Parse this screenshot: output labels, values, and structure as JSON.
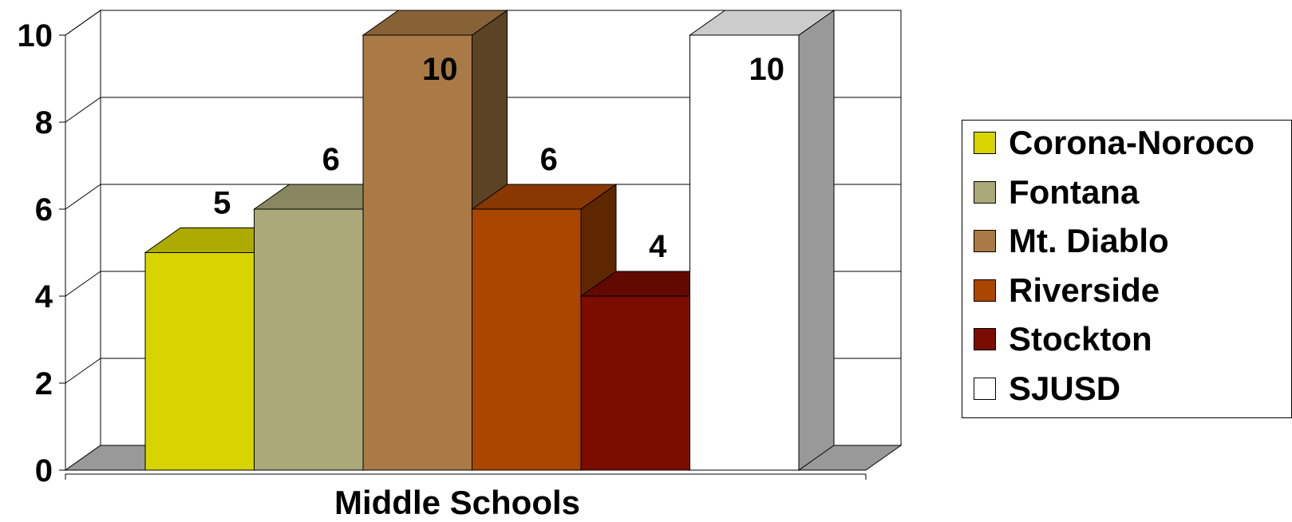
{
  "chart_data": {
    "type": "bar",
    "title": "",
    "xlabel": "Middle Schools",
    "ylabel": "",
    "ylim": [
      0,
      10
    ],
    "yticks": [
      "0",
      "2",
      "4",
      "6",
      "8",
      "10"
    ],
    "grid": true,
    "legend_position": "right",
    "categories": [
      "Middle Schools"
    ],
    "series": [
      {
        "name": "Corona-Noroco",
        "values": [
          5
        ],
        "label": "5",
        "color": "#D8D400"
      },
      {
        "name": "Fontana",
        "values": [
          6
        ],
        "label": "6",
        "color": "#ABA97A"
      },
      {
        "name": "Mt. Diablo",
        "values": [
          10
        ],
        "label": "10",
        "color": "#A97A45"
      },
      {
        "name": "Riverside",
        "values": [
          6
        ],
        "label": "6",
        "color": "#AA4600"
      },
      {
        "name": "Stockton",
        "values": [
          4
        ],
        "label": "4",
        "color": "#7A0D00"
      },
      {
        "name": "SJUSD",
        "values": [
          10
        ],
        "label": "10",
        "color": "#FFFFFF"
      }
    ]
  }
}
